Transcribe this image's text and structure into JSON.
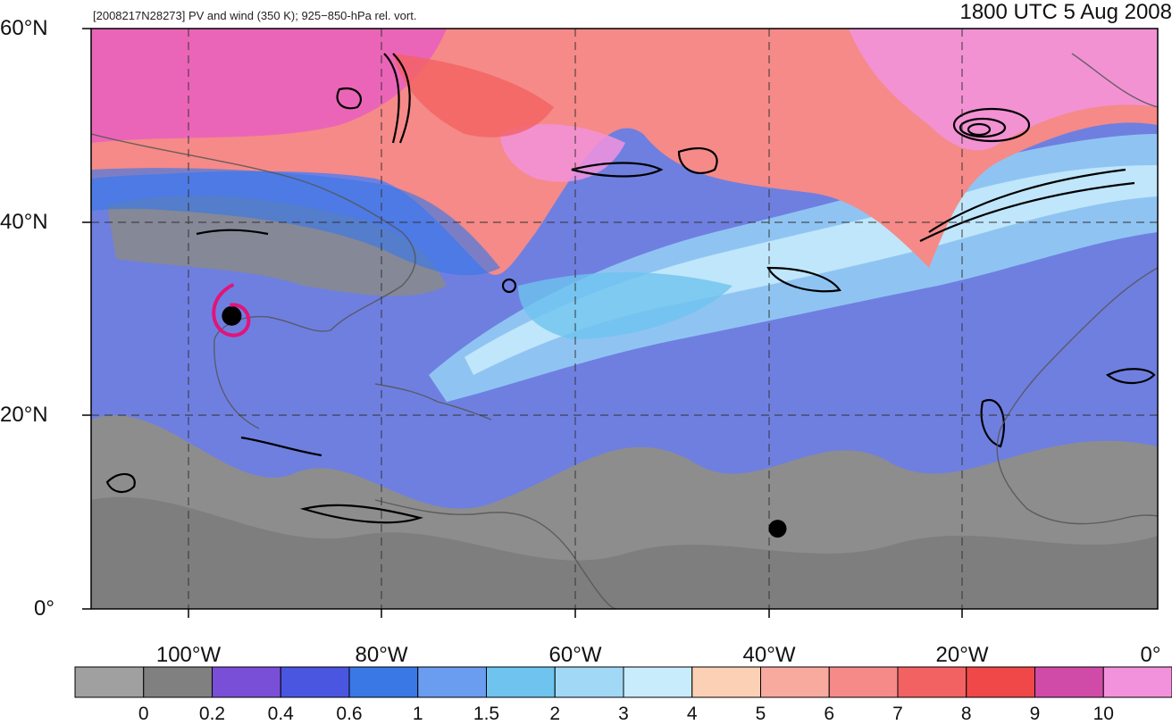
{
  "header": {
    "left_title": "[2008217N28273] PV and wind (350 K); 925−850-hPa rel. vort.",
    "right_title": "1800 UTC 5 Aug 2008"
  },
  "map": {
    "lat_labels": [
      "60°N",
      "40°N",
      "20°N",
      "0°"
    ],
    "lon_labels": [
      "100°W",
      "80°W",
      "60°W",
      "40°W",
      "20°W",
      "0°"
    ],
    "lon_range": [
      -110,
      0
    ],
    "lat_range": [
      0,
      60
    ],
    "storm_marker": {
      "lon": -95.5,
      "lat": 30.3,
      "color": "#e0147a"
    },
    "storm_marker_2": {
      "lon": -39.2,
      "lat": 8.3
    }
  },
  "colorbar": {
    "labels": [
      "0",
      "0.2",
      "0.4",
      "0.6",
      "1",
      "1.5",
      "2",
      "3",
      "4",
      "5",
      "6",
      "7",
      "8",
      "9",
      "10"
    ],
    "colors": [
      "#a0a0a0",
      "#808080",
      "#7a4fd8",
      "#4a55e0",
      "#3a78e6",
      "#6a9cf0",
      "#6ec3ef",
      "#a0d8f6",
      "#c8ecfb",
      "#fbd0b4",
      "#f8aa9e",
      "#f58a88",
      "#f26262",
      "#f04848",
      "#d04aa8",
      "#f292dc"
    ]
  }
}
